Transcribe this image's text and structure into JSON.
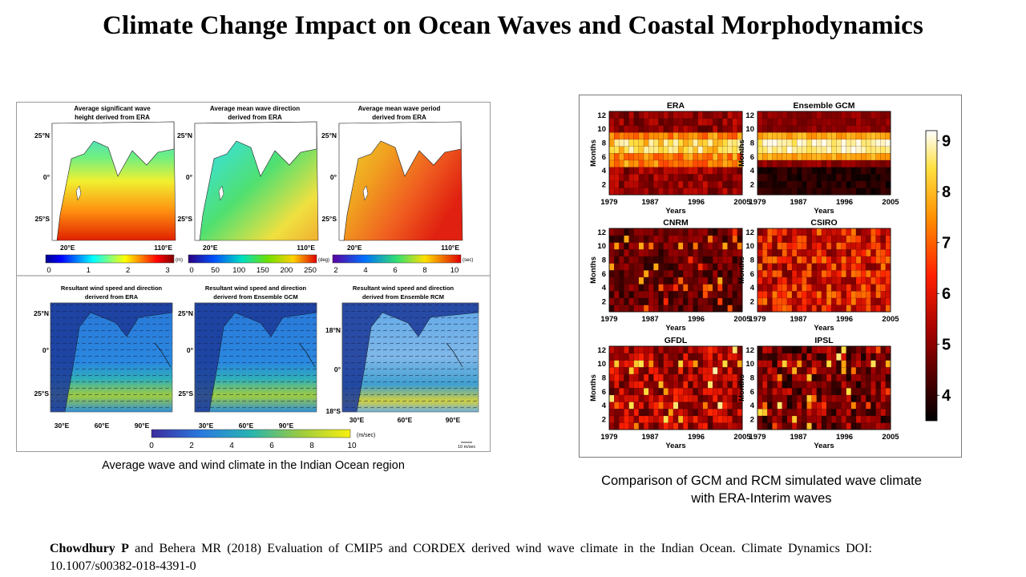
{
  "title": "Climate Change Impact on Ocean Waves and Coastal Morphodynamics",
  "left_figure": {
    "maps_top": [
      {
        "title_line1": "Average significant wave",
        "title_line2": "height derived from ERA",
        "lat_labels": [
          "25°N",
          "0°",
          "25°S"
        ],
        "lon_labels": [
          "20°E",
          "110°E"
        ],
        "colorbar_ticks": [
          "0",
          "1",
          "2",
          "3"
        ],
        "colorbar_unit": "(m)"
      },
      {
        "title_line1": "Average mean wave direction",
        "title_line2": "derived from ERA",
        "lat_labels": [
          "25°N",
          "0°",
          "25°S"
        ],
        "lon_labels": [
          "20°E",
          "110°E"
        ],
        "colorbar_ticks": [
          "0",
          "50",
          "100",
          "150",
          "200",
          "250"
        ],
        "colorbar_unit": "(deg)"
      },
      {
        "title_line1": "Average mean wave period",
        "title_line2": "derived from ERA",
        "lat_labels": [
          "25°N",
          "0°",
          "25°S"
        ],
        "lon_labels": [
          "20°E",
          "110°E"
        ],
        "colorbar_ticks": [
          "2",
          "4",
          "6",
          "8",
          "10"
        ],
        "colorbar_unit": "(sec)"
      }
    ],
    "maps_bottom": [
      {
        "title_line1": "Resultant wind speed and direction",
        "title_line2": "deriverd from ERA",
        "lat_labels": [
          "25°N",
          "0°",
          "25°S"
        ],
        "lon_labels": [
          "30°E",
          "60°E",
          "90°E"
        ]
      },
      {
        "title_line1": "Resultant wind speed and direction",
        "title_line2": "deriverd from Ensemble GCM",
        "lat_labels": [
          "25°N",
          "0°",
          "25°S"
        ],
        "lon_labels": [
          "30°E",
          "60°E",
          "90°E"
        ]
      },
      {
        "title_line1": "Resultant wind speed and direction",
        "title_line2": "derived from Ensemble RCM",
        "lat_labels": [
          "18°N",
          "0°",
          "18°S"
        ],
        "lon_labels": [
          "30°E",
          "60°E",
          "90°E"
        ]
      }
    ],
    "wind_colorbar_ticks": [
      "0",
      "2",
      "4",
      "6",
      "8",
      "10"
    ],
    "wind_colorbar_unit": "(m/sec)",
    "wind_scale_label": "10 m/sec",
    "caption": "Average wave and wind climate in the Indian Ocean region"
  },
  "right_figure": {
    "chart_data": {
      "type": "heatmap",
      "panels": [
        {
          "title": "ERA",
          "x_ticks": [
            "1979",
            "1987",
            "1996",
            "2005"
          ],
          "xlabel": "Years",
          "y_ticks": [
            "2",
            "4",
            "6",
            "8",
            "10",
            "12"
          ],
          "ylabel": "Months"
        },
        {
          "title": "Ensemble GCM",
          "x_ticks": [
            "1979",
            "1987",
            "1996",
            "2005"
          ],
          "xlabel": "Years",
          "y_ticks": [
            "2",
            "4",
            "6",
            "8",
            "10",
            "12"
          ],
          "ylabel": "Months"
        },
        {
          "title": "CNRM",
          "x_ticks": [
            "1979",
            "1987",
            "1996",
            "2005"
          ],
          "xlabel": "Years",
          "y_ticks": [
            "2",
            "4",
            "6",
            "8",
            "10",
            "12"
          ],
          "ylabel": "Months"
        },
        {
          "title": "CSIRO",
          "x_ticks": [
            "1979",
            "1987",
            "1996",
            "2005"
          ],
          "xlabel": "Years",
          "y_ticks": [
            "2",
            "4",
            "6",
            "8",
            "10",
            "12"
          ],
          "ylabel": "Months"
        },
        {
          "title": "GFDL",
          "x_ticks": [
            "1979",
            "1987",
            "1996",
            "2005"
          ],
          "xlabel": "Years",
          "y_ticks": [
            "2",
            "4",
            "6",
            "8",
            "10",
            "12"
          ],
          "ylabel": "Months"
        },
        {
          "title": "IPSL",
          "x_ticks": [
            "1979",
            "1987",
            "1996",
            "2005"
          ],
          "xlabel": "Years",
          "y_ticks": [
            "2",
            "4",
            "6",
            "8",
            "10",
            "12"
          ],
          "ylabel": "Months"
        }
      ],
      "x_range": [
        1979,
        2005
      ],
      "y_range": [
        1,
        12
      ],
      "colorbar_ticks": [
        "4",
        "5",
        "6",
        "7",
        "8",
        "9"
      ],
      "colorbar_range": [
        3.5,
        9.2
      ]
    },
    "caption_line1": "Comparison of GCM and RCM simulated wave climate",
    "caption_line2": "with ERA-Interim waves"
  },
  "citation": {
    "authors_bold": "Chowdhury P",
    "text": " and Behera MR (2018) Evaluation of CMIP5 and CORDEX derived wind wave climate in the Indian Ocean. Climate Dynamics DOI: 10.1007/s00382-018-4391-0"
  }
}
